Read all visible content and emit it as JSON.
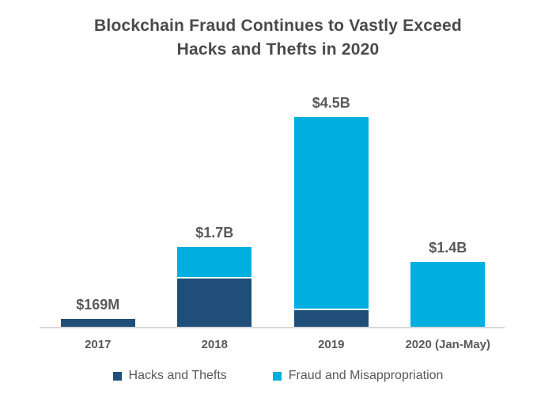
{
  "title": "Blockchain Fraud Continues to Vastly Exceed\nHacks and Thefts in 2020",
  "colors": {
    "hacks": "#1F4E79",
    "fraud": "#00AEE0",
    "title_text": "#4A4A4A",
    "label_text": "#595959",
    "axis_line": "#D9D9D9",
    "background": "#FFFFFF"
  },
  "legend": {
    "items": [
      {
        "label": "Hacks and Thefts",
        "color_key": "hacks"
      },
      {
        "label": "Fraud and Misappropriation",
        "color_key": "fraud"
      }
    ]
  },
  "chart_data": {
    "type": "bar",
    "stacked": true,
    "unit": "USD billions",
    "title": "Blockchain Fraud Continues to Vastly Exceed Hacks and Thefts in 2020",
    "categories": [
      "2017",
      "2018",
      "2019",
      "2020 (Jan-May)"
    ],
    "total_labels": [
      "$169M",
      "$1.7B",
      "$4.5B",
      "$1.4B"
    ],
    "totals": [
      0.169,
      1.7,
      4.5,
      1.4
    ],
    "series": [
      {
        "name": "Hacks and Thefts",
        "color_key": "hacks",
        "values": [
          0.169,
          1.05,
          0.36,
          0
        ]
      },
      {
        "name": "Fraud and Misappropriation",
        "color_key": "fraud",
        "values": [
          0,
          0.65,
          4.14,
          1.4
        ]
      }
    ],
    "xlabel": "",
    "ylabel": "",
    "ylim": [
      0,
      4.6
    ],
    "grid": false,
    "y_axis_visible": false,
    "legend_position": "bottom"
  }
}
